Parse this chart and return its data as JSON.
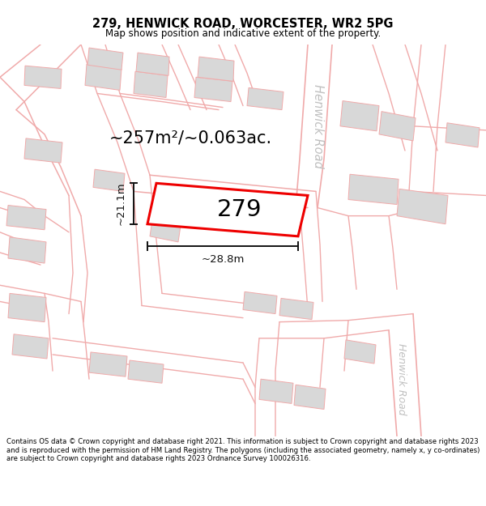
{
  "title": "279, HENWICK ROAD, WORCESTER, WR2 5PG",
  "subtitle": "Map shows position and indicative extent of the property.",
  "footer": "Contains OS data © Crown copyright and database right 2021. This information is subject to Crown copyright and database rights 2023 and is reproduced with the permission of HM Land Registry. The polygons (including the associated geometry, namely x, y co-ordinates) are subject to Crown copyright and database rights 2023 Ordnance Survey 100026316.",
  "area_label": "~257m²/~0.063ac.",
  "plot_number": "279",
  "dim_width": "~28.8m",
  "dim_height": "~21.1m",
  "road_label_top": "Henwick Road",
  "road_label_bot": "Henwick Road",
  "map_bg": "#ffffff",
  "pink": "#f0aaaa",
  "grey_fill": "#d8d8d8",
  "plot_red": "#ee0000",
  "dim_black": "#111111",
  "road_grey": "#c0c0c0"
}
